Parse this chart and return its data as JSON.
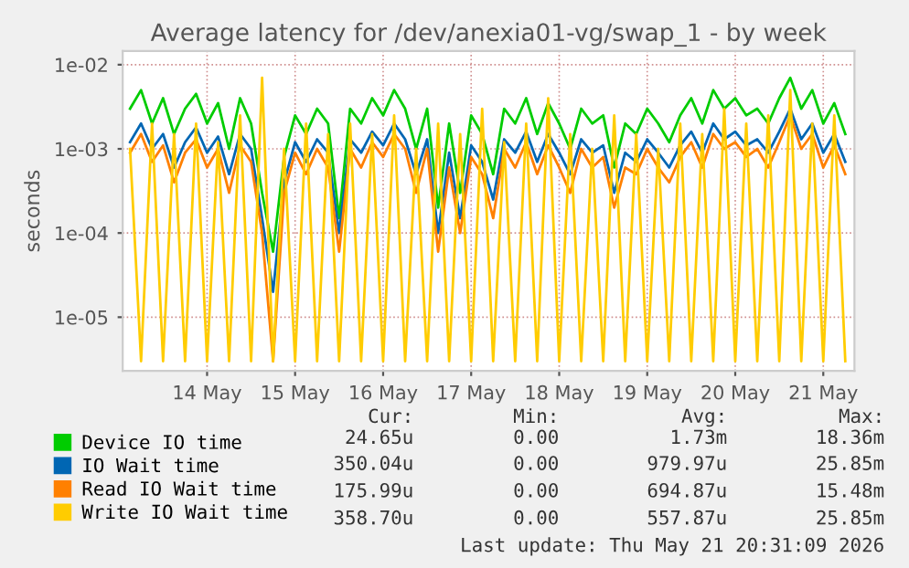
{
  "chart_data": {
    "type": "line",
    "title": "Average latency for /dev/anexia01-vg/swap_1 - by week",
    "ylabel": "seconds",
    "x": [
      "2026-05-13T15:00",
      "2026-05-13T18:00",
      "2026-05-13T21:00",
      "2026-05-14T00:00",
      "2026-05-14T03:00",
      "2026-05-14T06:00",
      "2026-05-14T09:00",
      "2026-05-14T12:00",
      "2026-05-14T15:00",
      "2026-05-14T18:00",
      "2026-05-14T21:00",
      "2026-05-15T00:00",
      "2026-05-15T03:00",
      "2026-05-15T06:00",
      "2026-05-15T09:00",
      "2026-05-15T12:00",
      "2026-05-15T15:00",
      "2026-05-15T18:00",
      "2026-05-15T21:00",
      "2026-05-16T00:00",
      "2026-05-16T03:00",
      "2026-05-16T06:00",
      "2026-05-16T09:00",
      "2026-05-16T12:00",
      "2026-05-16T15:00",
      "2026-05-16T18:00",
      "2026-05-16T21:00",
      "2026-05-17T00:00",
      "2026-05-17T03:00",
      "2026-05-17T06:00",
      "2026-05-17T09:00",
      "2026-05-17T12:00",
      "2026-05-17T15:00",
      "2026-05-17T18:00",
      "2026-05-17T21:00",
      "2026-05-18T00:00",
      "2026-05-18T03:00",
      "2026-05-18T06:00",
      "2026-05-18T09:00",
      "2026-05-18T12:00",
      "2026-05-18T15:00",
      "2026-05-18T18:00",
      "2026-05-18T21:00",
      "2026-05-19T00:00",
      "2026-05-19T03:00",
      "2026-05-19T06:00",
      "2026-05-19T09:00",
      "2026-05-19T12:00",
      "2026-05-19T15:00",
      "2026-05-19T18:00",
      "2026-05-19T21:00",
      "2026-05-20T00:00",
      "2026-05-20T03:00",
      "2026-05-20T06:00",
      "2026-05-20T09:00",
      "2026-05-20T12:00",
      "2026-05-20T15:00",
      "2026-05-20T18:00",
      "2026-05-20T21:00",
      "2026-05-21T00:00",
      "2026-05-21T03:00",
      "2026-05-21T06:00",
      "2026-05-21T09:00",
      "2026-05-21T12:00",
      "2026-05-21T15:00",
      "2026-05-21T18:00"
    ],
    "series": [
      {
        "name": "Device IO time",
        "color": "#00cc00",
        "values": [
          0.003,
          0.005,
          0.002,
          0.004,
          0.0015,
          0.003,
          0.0045,
          0.002,
          0.0035,
          0.001,
          0.004,
          0.002,
          0.0003,
          6e-05,
          0.0008,
          0.0025,
          0.0015,
          0.003,
          0.002,
          0.00015,
          0.003,
          0.002,
          0.004,
          0.0025,
          0.005,
          0.003,
          0.001,
          0.003,
          0.0002,
          0.002,
          0.0003,
          0.0025,
          0.0015,
          0.0005,
          0.003,
          0.002,
          0.004,
          0.0015,
          0.0035,
          0.002,
          0.001,
          0.003,
          0.002,
          0.0025,
          0.0006,
          0.002,
          0.0015,
          0.003,
          0.002,
          0.0012,
          0.0025,
          0.004,
          0.002,
          0.005,
          0.003,
          0.004,
          0.0025,
          0.003,
          0.002,
          0.004,
          0.007,
          0.003,
          0.005,
          0.002,
          0.0035,
          0.0015
        ]
      },
      {
        "name": "IO Wait time",
        "color": "#0066b3",
        "values": [
          0.0012,
          0.002,
          0.001,
          0.0015,
          0.0006,
          0.0012,
          0.0018,
          0.0009,
          0.0014,
          0.0005,
          0.0015,
          0.001,
          0.00015,
          2e-05,
          0.0004,
          0.0012,
          0.0007,
          0.0013,
          0.0009,
          0.0001,
          0.0013,
          0.0009,
          0.0016,
          0.0011,
          0.002,
          0.0013,
          0.0005,
          0.0013,
          0.0001,
          0.0009,
          0.00015,
          0.0011,
          0.0007,
          0.00025,
          0.0013,
          0.0009,
          0.0016,
          0.0007,
          0.0015,
          0.0009,
          0.0005,
          0.0013,
          0.0009,
          0.0011,
          0.0003,
          0.0009,
          0.0007,
          0.0013,
          0.0009,
          0.0006,
          0.0011,
          0.0016,
          0.0009,
          0.002,
          0.0013,
          0.0016,
          0.0011,
          0.0013,
          0.0009,
          0.0016,
          0.003,
          0.0013,
          0.002,
          0.0009,
          0.0015,
          0.0007
        ]
      },
      {
        "name": "Read IO Wait time",
        "color": "#ff8000",
        "values": [
          0.0009,
          0.0015,
          0.0007,
          0.0011,
          0.0004,
          0.0009,
          0.0013,
          0.0006,
          0.001,
          0.0003,
          0.0011,
          0.0007,
          0.0001,
          3e-06,
          0.0003,
          0.0009,
          0.0005,
          0.001,
          0.0006,
          6e-05,
          0.001,
          0.0006,
          0.0012,
          0.0008,
          0.0015,
          0.001,
          0.0003,
          0.001,
          6e-05,
          0.0006,
          0.0001,
          0.0008,
          0.0005,
          0.00015,
          0.001,
          0.0006,
          0.0012,
          0.0005,
          0.0011,
          0.0006,
          0.0003,
          0.001,
          0.0006,
          0.0008,
          0.0002,
          0.0006,
          0.0005,
          0.001,
          0.0006,
          0.0004,
          0.0008,
          0.0012,
          0.0006,
          0.0015,
          0.001,
          0.0012,
          0.0008,
          0.001,
          0.0006,
          0.0012,
          0.0025,
          0.001,
          0.0015,
          0.0006,
          0.0011,
          0.0005
        ]
      },
      {
        "name": "Write IO Wait time",
        "color": "#ffcc00",
        "values": [
          0.001,
          3e-06,
          0.002,
          3e-06,
          0.0015,
          3e-06,
          0.002,
          3e-06,
          0.0012,
          3e-06,
          0.0025,
          3e-06,
          0.007,
          3e-06,
          0.001,
          3e-06,
          0.002,
          3e-06,
          0.0015,
          3e-06,
          0.002,
          3e-06,
          0.0015,
          3e-06,
          0.0025,
          3e-06,
          0.001,
          3e-06,
          0.002,
          3e-06,
          0.0015,
          3e-06,
          0.003,
          3e-06,
          0.0012,
          3e-06,
          0.002,
          3e-06,
          0.004,
          3e-06,
          0.0015,
          3e-06,
          0.001,
          3e-06,
          0.0025,
          3e-06,
          0.0015,
          3e-06,
          0.001,
          3e-06,
          0.002,
          3e-06,
          0.0015,
          3e-06,
          0.003,
          3e-06,
          0.002,
          3e-06,
          0.0025,
          3e-06,
          0.005,
          3e-06,
          0.002,
          3e-06,
          0.0025,
          3e-06
        ]
      }
    ],
    "log": "y",
    "ylim": [
      2.3e-06,
      0.0145
    ],
    "yticks": [
      {
        "value": 1e-05,
        "label": "1e-05"
      },
      {
        "value": 0.0001,
        "label": "1e-04"
      },
      {
        "value": 0.001,
        "label": "1e-03"
      },
      {
        "value": 0.01,
        "label": "1e-02"
      }
    ],
    "xlim": [
      "2026-05-13T13:00",
      "2026-05-21T20:30"
    ],
    "xticks": [
      {
        "value": "2026-05-14T12:00",
        "label": "14 May"
      },
      {
        "value": "2026-05-15T12:00",
        "label": "15 May"
      },
      {
        "value": "2026-05-16T12:00",
        "label": "16 May"
      },
      {
        "value": "2026-05-17T12:00",
        "label": "17 May"
      },
      {
        "value": "2026-05-18T12:00",
        "label": "18 May"
      },
      {
        "value": "2026-05-19T12:00",
        "label": "19 May"
      },
      {
        "value": "2026-05-20T12:00",
        "label": "20 May"
      },
      {
        "value": "2026-05-21T12:00",
        "label": "21 May"
      }
    ],
    "grid": true,
    "legend": "bottom",
    "annotations": [
      "Cur:",
      "Min:",
      "Avg:",
      "Max:",
      "24.65u",
      "0.00",
      "1.73m",
      "18.36m",
      "350.04u",
      "0.00",
      "979.97u",
      "25.85m",
      "175.99u",
      "0.00",
      "694.87u",
      "15.48m",
      "358.70u",
      "0.00",
      "557.87u",
      "25.85m",
      "Last update: Thu May 21 20:31:09 2026"
    ]
  }
}
